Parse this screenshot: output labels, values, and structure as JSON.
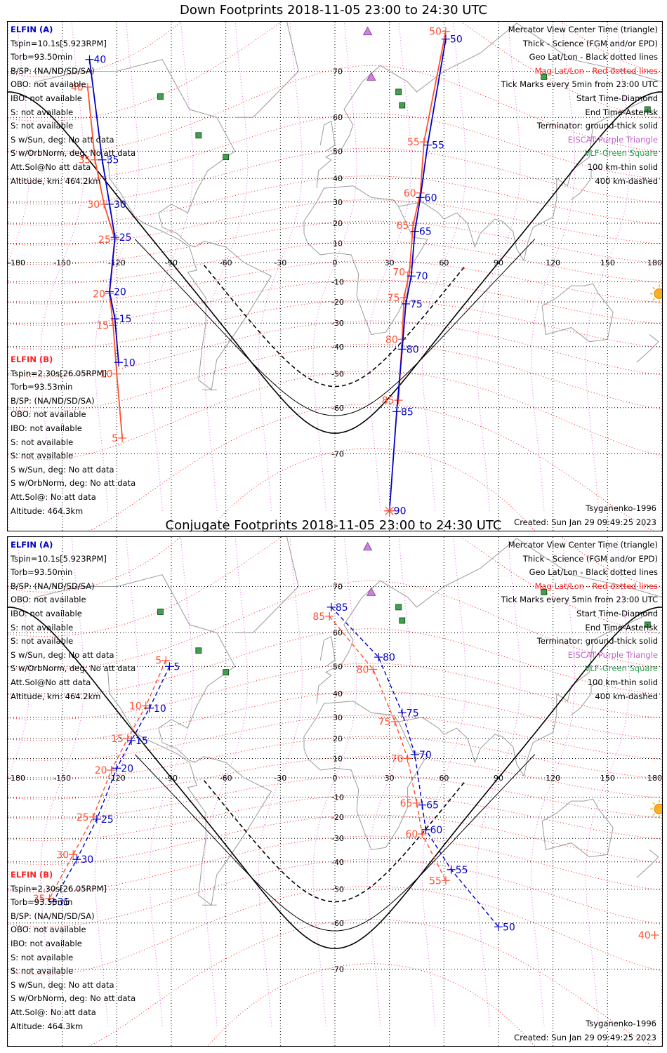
{
  "panels": [
    {
      "title": "Down Footprints 2018-11-05 23:00 to 24:30 UTC",
      "sat_a": {
        "header": "ELFIN (A)",
        "lines": [
          "Tspin=10.1s[5.923RPM]",
          "Torb=93.50min",
          "B/SP: (NA/ND/SD/SA)",
          "OBO: not available",
          "IBO: not available",
          "S: not available",
          "S: not available",
          "S w/Sun, deg: No att data",
          "S w/OrbNorm, deg: No att data",
          "Att.Sol@No att data",
          "Altitude, km: 464.2km"
        ]
      },
      "sat_b": {
        "header": "ELFIN (B)",
        "lines": [
          "Tspin=2.30s[26.05RPM]",
          "Torb=93.53min",
          "B/SP: (NA/ND/SD/SA)",
          "OBO: not available",
          "IBO: not available",
          "S: not available",
          "S: not available",
          "S w/Sun, deg: No att data",
          "S w/OrbNorm, deg: No att data",
          "Att.Sol@: No att data",
          "Altitude: 464.3km"
        ]
      },
      "footer_left": "Tsyganenko-1996",
      "footer_created": "Created: Sun Jan 29 09:49:25 2023"
    },
    {
      "title": "Conjugate Footprints 2018-11-05 23:00 to 24:30 UTC",
      "sat_a": {
        "header": "ELFIN (A)",
        "lines": [
          "Tspin=10.1s[5.923RPM]",
          "Torb=93.50min",
          "B/SP: (NA/ND/SD/SA)",
          "OBO: not available",
          "IBO: not available",
          "S: not available",
          "S: not available",
          "S w/Sun, deg: No att data",
          "S w/OrbNorm, deg: No att data",
          "Att.Sol@No att data",
          "Altitude, km: 464.2km"
        ]
      },
      "sat_b": {
        "header": "ELFIN (B)",
        "lines": [
          "Tspin=2.30s[26.05RPM]",
          "Torb=93.53min",
          "B/SP: (NA/ND/SD/SA)",
          "OBO: not available",
          "IBO: not available",
          "S: not available",
          "S: not available",
          "S w/Sun, deg: No att data",
          "S w/OrbNorm, deg: No att data",
          "Att.Sol@: No att data",
          "Altitude: 464.3km"
        ]
      },
      "footer_left": "Tsyganenko-1996",
      "footer_created": "Created: Sun Jan 29 09:49:25 2023"
    }
  ],
  "legend": [
    {
      "text": "Mercator View Center Time (triangle)",
      "color": "#000000"
    },
    {
      "text": "Thick - Science (FGM and/or EPD)",
      "color": "#000000"
    },
    {
      "text": "Geo Lat/Lon - Black dotted lines",
      "color": "#000000"
    },
    {
      "text": "Mag Lat/Lon - Red dotted lines",
      "color": "#ff2020"
    },
    {
      "text": "Tick Marks every 5min from 23:00 UTC",
      "color": "#000000"
    },
    {
      "text": "Start Time-Diamond",
      "color": "#000000"
    },
    {
      "text": "End Time-Asterisk",
      "color": "#000000"
    },
    {
      "text": "Terminator: ground-thick solid",
      "color": "#000000"
    },
    {
      "text": "EISCAT-Purple Triangle",
      "color": "#c060d0"
    },
    {
      "text": "VLF-Green Square",
      "color": "#30a050"
    },
    {
      "text": "100 km-thin solid",
      "color": "#000000"
    },
    {
      "text": "400 km-dashed",
      "color": "#000000"
    }
  ],
  "chart_data": [
    {
      "type": "scatter",
      "title": "Down Footprints 2018-11-05 23:00 to 24:30 UTC",
      "projection": "mercator",
      "xlim": [
        -180,
        180
      ],
      "ylim": [
        -80,
        80
      ],
      "x_ticks": [
        -180,
        -150,
        -120,
        -90,
        -60,
        -30,
        0,
        30,
        60,
        90,
        120,
        150,
        180
      ],
      "x_tick_labels": [
        "-180",
        "-150",
        "-120",
        "-90",
        "-60",
        "-30",
        "0",
        "30",
        "60",
        "90",
        "120",
        "150",
        "180"
      ],
      "y_ticks": [
        70,
        60,
        50,
        40,
        30,
        20,
        10,
        0,
        -10,
        -20,
        -30,
        -40,
        -50,
        -60,
        -70
      ],
      "grid": true,
      "terminator": {
        "sub_solar_lon": 180,
        "sub_solar_lat": -16
      },
      "series": [
        {
          "name": "ELFIN (A)",
          "color": "#0000c8",
          "points": [
            {
              "label": "50",
              "lon": 61,
              "lat": 75
            },
            {
              "label": "55",
              "lon": 51,
              "lat": 52
            },
            {
              "label": "60",
              "lon": 47,
              "lat": 32
            },
            {
              "label": "65",
              "lon": 44,
              "lat": 16
            },
            {
              "label": "70",
              "lon": 42,
              "lat": -7
            },
            {
              "label": "75",
              "lon": 39,
              "lat": -21
            },
            {
              "label": "80",
              "lon": 37,
              "lat": -41
            },
            {
              "label": "85",
              "lon": 34,
              "lat": -61
            },
            {
              "label": "90",
              "lon": 30,
              "lat": -78
            }
          ],
          "pre_points": [
            {
              "label": "40",
              "lon": -135,
              "lat": 72
            },
            {
              "label": "35",
              "lon": -128,
              "lat": 47
            },
            {
              "label": "30",
              "lon": -124,
              "lat": 29
            },
            {
              "label": "25",
              "lon": -121,
              "lat": 13
            },
            {
              "label": "20",
              "lon": -124,
              "lat": -15
            },
            {
              "label": "15",
              "lon": -121,
              "lat": -28
            },
            {
              "label": "10",
              "lon": -119,
              "lat": -46
            }
          ]
        },
        {
          "name": "ELFIN (B)",
          "color": "#ff5030",
          "points": [
            {
              "label": "40",
              "lon": -136,
              "lat": 67
            },
            {
              "label": "35",
              "lon": -132,
              "lat": 47
            },
            {
              "label": "30",
              "lon": -127,
              "lat": 29
            },
            {
              "label": "25",
              "lon": -121,
              "lat": 12
            },
            {
              "label": "20",
              "lon": -124,
              "lat": -16
            },
            {
              "label": "15",
              "lon": -122,
              "lat": -31
            },
            {
              "label": "10",
              "lon": -120,
              "lat": -50
            },
            {
              "label": "5",
              "lon": -117,
              "lat": -67
            },
            {
              "label": "50",
              "lon": 61,
              "lat": 76
            },
            {
              "label": "55",
              "lon": 49,
              "lat": 53
            },
            {
              "label": "60",
              "lon": 47,
              "lat": 34
            },
            {
              "label": "65",
              "lon": 43,
              "lat": 19
            },
            {
              "label": "70",
              "lon": 41,
              "lat": -5
            },
            {
              "label": "75",
              "lon": 38,
              "lat": -18
            },
            {
              "label": "80",
              "lon": 37,
              "lat": -37
            },
            {
              "label": "85",
              "lon": 35,
              "lat": -58
            }
          ]
        }
      ]
    },
    {
      "type": "scatter",
      "title": "Conjugate Footprints 2018-11-05 23:00 to 24:30 UTC",
      "projection": "mercator",
      "xlim": [
        -180,
        180
      ],
      "ylim": [
        -80,
        80
      ],
      "x_ticks": [
        -180,
        -150,
        -120,
        -90,
        -60,
        -30,
        0,
        30,
        60,
        90,
        120,
        150,
        180
      ],
      "x_tick_labels": [
        "-180",
        "-150",
        "-120",
        "-90",
        "-60",
        "-30",
        "0",
        "30",
        "60",
        "90",
        "120",
        "150",
        "180"
      ],
      "y_ticks": [
        70,
        60,
        50,
        40,
        30,
        20,
        10,
        0,
        -10,
        -20,
        -30,
        -40,
        -50,
        -60,
        -70
      ],
      "grid": true,
      "series": [
        {
          "name": "ELFIN (A)",
          "color": "#0000c8",
          "points": [
            {
              "label": "85",
              "lon": -2,
              "lat": 66
            },
            {
              "label": "80",
              "lon": 24,
              "lat": 53
            },
            {
              "label": "75",
              "lon": 37,
              "lat": 32
            },
            {
              "label": "70",
              "lon": 44,
              "lat": 12
            },
            {
              "label": "65",
              "lon": 48,
              "lat": -14
            },
            {
              "label": "60",
              "lon": 50,
              "lat": -26
            },
            {
              "label": "55",
              "lon": 64,
              "lat": -43
            },
            {
              "label": "50",
              "lon": 90,
              "lat": -61
            },
            {
              "label": "5",
              "lon": -91,
              "lat": 50
            },
            {
              "label": "10",
              "lon": -102,
              "lat": 34
            },
            {
              "label": "15",
              "lon": -112,
              "lat": 19
            },
            {
              "label": "20",
              "lon": -120,
              "lat": 5
            },
            {
              "label": "25",
              "lon": -131,
              "lat": -21
            },
            {
              "label": "30",
              "lon": -142,
              "lat": -39
            },
            {
              "label": "35",
              "lon": -155,
              "lat": -54
            }
          ]
        },
        {
          "name": "ELFIN (B)",
          "color": "#ff5030",
          "points": [
            {
              "label": "85",
              "lon": -3,
              "lat": 64
            },
            {
              "label": "80",
              "lon": 21,
              "lat": 49
            },
            {
              "label": "75",
              "lon": 33,
              "lat": 28
            },
            {
              "label": "70",
              "lon": 40,
              "lat": 10
            },
            {
              "label": "65",
              "lon": 45,
              "lat": -13
            },
            {
              "label": "60",
              "lon": 48,
              "lat": -28
            },
            {
              "label": "55",
              "lon": 61,
              "lat": -47
            },
            {
              "label": "5",
              "lon": -93,
              "lat": 52
            },
            {
              "label": "10",
              "lon": -104,
              "lat": 35
            },
            {
              "label": "15",
              "lon": -114,
              "lat": 20
            },
            {
              "label": "20",
              "lon": -123,
              "lat": 4
            },
            {
              "label": "25",
              "lon": -133,
              "lat": -20
            },
            {
              "label": "30",
              "lon": -144,
              "lat": -37
            },
            {
              "label": "35",
              "lon": -157,
              "lat": -53
            },
            {
              "label": "40",
              "lon": 176,
              "lat": -63
            }
          ]
        }
      ]
    }
  ]
}
